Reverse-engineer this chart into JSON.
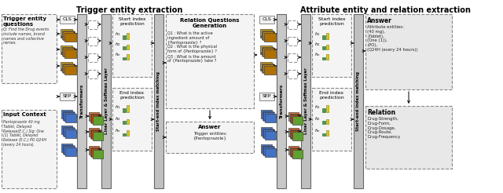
{
  "title_left": "Trigger entity extraction",
  "title_right": "Attribute entity and relation extraction",
  "bg_color": "#ffffff",
  "trigger_box_text": "Trigger entity\nquestions",
  "trigger_q_text": "Q: Find the Drug events\ninclude names, brand\nnames and collective\nnames.",
  "input_ctx_text": "Input Context",
  "input_ctx_detail": "Pantoprazole 40 mg\nTablet, Delayed\nRelease(E.C.) Sig: One\n(1) Tablet, Delayed\nRelease (E.C.) PO Q24H\n(every 24 hours).",
  "relation_gen_title": "Relation Questions\nGeneration",
  "relation_gen_q": "Q1 : What is the active\ningredient amount of\n{Pantoprazole} ?\nQ2 : What is the physical\nform of {Pantoprazole} ?\nQ3 : What is the amount\nof {Pantoprazole} take ?",
  "answer_trigger_title": "Answer",
  "answer_trigger_text": "Trigger entities:\n{Pantoprazole}",
  "answer_attr_title": "Answer",
  "answer_attr_text": "Attribute entities:\n(40 mg),\n(Tablet),\n(One (1)),\n(PO),\n(Q24H (every 24 hours))",
  "relation_title": "Relation",
  "relation_text": "Drug-Strength,\nDrug-Form,\nDrug-Dosage,\nDrug-Route,\nDrug-Frequency",
  "gray_box": "#d0d0d0",
  "transformer_fc": "#c8c8c8",
  "linear_fc": "#c0c0c0",
  "start_end_fc": "#c0c0c0",
  "cls_sep_fc": "#f0f0f0",
  "q_stack": [
    "#d4a012",
    "#c89010",
    "#bc8008",
    "#b07000"
  ],
  "x_fc": "#4472c4",
  "h_stack": [
    "#e07030",
    "#c86020",
    "#a85010",
    "#60a030"
  ],
  "bar_green": "#4a9a4a",
  "bar_yellow": "#d8c828",
  "dashed_fill": "#f4f4f4",
  "output_fill": "#e8e8e8"
}
